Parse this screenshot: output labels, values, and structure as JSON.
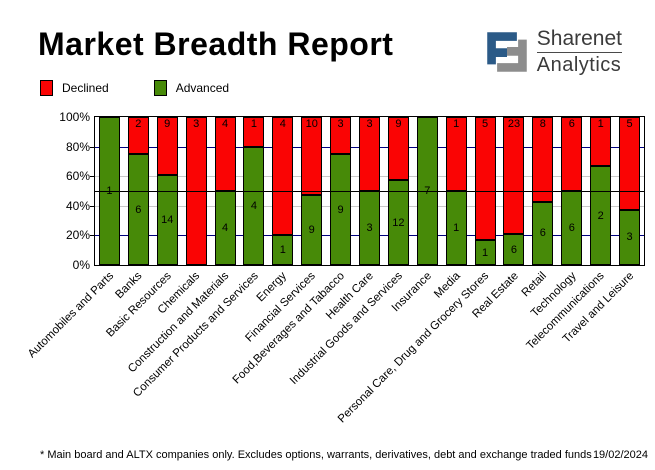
{
  "header": {
    "title": "Market Breadth Report",
    "logo": {
      "line1": "Sharenet",
      "line2": "Analytics",
      "blue": "#2b5a87",
      "gray": "#8d8d8d"
    }
  },
  "footer": {
    "note": "* Main board and ALTX companies only. Excludes options, warrants, derivatives, debt and exchange traded funds",
    "date": "19/02/2024"
  },
  "chart_data": {
    "type": "bar",
    "stacked_percent": true,
    "title": "Market Breadth Report",
    "categories": [
      "Automobiles and Parts",
      "Banks",
      "Basic Resources",
      "Chemicals",
      "Construction and Materials",
      "Consumer Products and Services",
      "Energy",
      "Financial Services",
      "Food,Beverages and Tabacco",
      "Health Care",
      "Industrial Goods and Services",
      "Insurance",
      "Media",
      "Personal Care, Drug and Grocery Stores",
      "Real Estate",
      "Retail",
      "Technology",
      "Telecommunications",
      "Travel and Leisure"
    ],
    "series": [
      {
        "name": "Declined",
        "color": "#fa0404",
        "values": [
          0,
          2,
          9,
          3,
          4,
          1,
          4,
          10,
          3,
          3,
          9,
          0,
          1,
          5,
          23,
          8,
          6,
          1,
          5
        ]
      },
      {
        "name": "Advanced",
        "color": "#478a08",
        "values": [
          1,
          6,
          14,
          0,
          4,
          4,
          1,
          9,
          9,
          3,
          12,
          7,
          1,
          1,
          6,
          6,
          6,
          2,
          3
        ]
      }
    ],
    "y_axis": {
      "ticks": [
        {
          "label": "100%",
          "value": 100
        },
        {
          "label": "80%",
          "value": 80
        },
        {
          "label": "60%",
          "value": 60
        },
        {
          "label": "40%",
          "value": 40
        },
        {
          "label": "20%",
          "value": 20
        },
        {
          "label": "0%",
          "value": 0
        }
      ],
      "ylim": [
        0,
        100
      ]
    },
    "gridlines": [
      {
        "value": 80,
        "color": "#00007f"
      },
      {
        "value": 60,
        "color": "#c9c9c9"
      },
      {
        "value": 40,
        "color": "#c9c9c9"
      },
      {
        "value": 20,
        "color": "#00007f"
      }
    ],
    "midline": {
      "value": 50,
      "color": "#000000"
    },
    "legend_position": "top-left"
  }
}
